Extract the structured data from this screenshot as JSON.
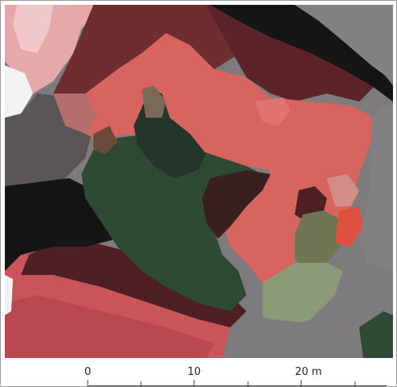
{
  "map": {
    "description_type": "segmented aerial image",
    "palette": {
      "salmon": "#d8645f",
      "dark_red": "#6e2d31",
      "maroon": "#4e2023",
      "forest_green": "#2f4a32",
      "dark_green": "#24362a",
      "olive": "#6e7653",
      "gray": "#7d7b7d",
      "dark_gray": "#5a5558",
      "black": "#151515",
      "pink": "#e6a9aa",
      "light_pink": "#f0c8c9",
      "white": "#f2f2f2",
      "sage": "#8c9a79",
      "orange_red": "#e0503f",
      "crimson": "#b8474f"
    }
  },
  "scale": {
    "labels": [
      "0",
      "10",
      "20 m"
    ],
    "major_ticks": [
      0,
      10,
      20
    ],
    "minor_ticks": [
      5,
      15,
      25
    ],
    "unit": "m"
  }
}
